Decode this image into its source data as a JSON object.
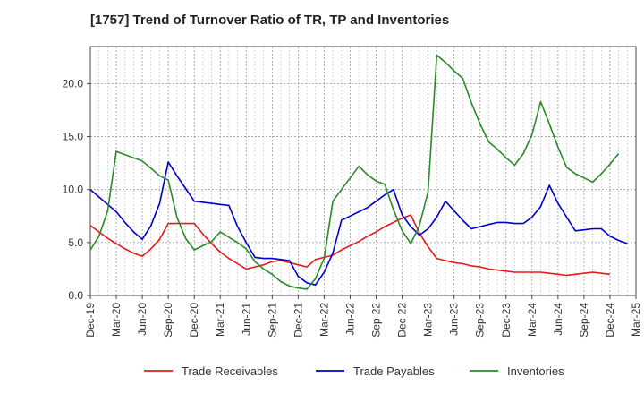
{
  "chart_data": {
    "type": "line",
    "title": "[1757]  Trend of Turnover Ratio of TR, TP and Inventories",
    "xlabel": "",
    "ylabel": "",
    "ylim": [
      0,
      23.5
    ],
    "grid": true,
    "legend_position": "bottom",
    "y_ticks": [
      0,
      5,
      10,
      15,
      20
    ],
    "y_tick_labels": [
      "0.0",
      "5.0",
      "10.0",
      "15.0",
      "20.0"
    ],
    "x_tick_labels": [
      "Dec-19",
      "Mar-20",
      "Jun-20",
      "Sep-20",
      "Dec-20",
      "Mar-21",
      "Jun-21",
      "Sep-21",
      "Dec-21",
      "Mar-22",
      "Jun-22",
      "Sep-22",
      "Dec-22",
      "Mar-23",
      "Jun-23",
      "Sep-23",
      "Dec-23",
      "Mar-24",
      "Jun-24",
      "Sep-24",
      "Dec-24",
      "Mar-25"
    ],
    "x_month_range": [
      0,
      63
    ],
    "series": [
      {
        "name": "Trade Receivables",
        "color": "#e31a1c",
        "points": [
          [
            0,
            6.6
          ],
          [
            1,
            6.0
          ],
          [
            2,
            5.4
          ],
          [
            3,
            4.9
          ],
          [
            4,
            4.4
          ],
          [
            5,
            4.0
          ],
          [
            6,
            3.7
          ],
          [
            7,
            4.4
          ],
          [
            8,
            5.3
          ],
          [
            9,
            6.8
          ],
          [
            10,
            6.8
          ],
          [
            11,
            6.8
          ],
          [
            12,
            6.8
          ],
          [
            13,
            5.8
          ],
          [
            14,
            4.9
          ],
          [
            15,
            4.1
          ],
          [
            16,
            3.5
          ],
          [
            17,
            3.0
          ],
          [
            18,
            2.5
          ],
          [
            19,
            2.7
          ],
          [
            20,
            2.9
          ],
          [
            21,
            3.2
          ],
          [
            22,
            3.3
          ],
          [
            23,
            3.1
          ],
          [
            24,
            2.9
          ],
          [
            25,
            2.7
          ],
          [
            26,
            3.4
          ],
          [
            27,
            3.6
          ],
          [
            28,
            3.8
          ],
          [
            29,
            4.3
          ],
          [
            30,
            4.7
          ],
          [
            31,
            5.1
          ],
          [
            32,
            5.6
          ],
          [
            33,
            6.0
          ],
          [
            34,
            6.5
          ],
          [
            35,
            6.9
          ],
          [
            36,
            7.3
          ],
          [
            37,
            7.6
          ],
          [
            38,
            5.9
          ],
          [
            39,
            4.6
          ],
          [
            40,
            3.5
          ],
          [
            41,
            3.3
          ],
          [
            42,
            3.1
          ],
          [
            43,
            3.0
          ],
          [
            44,
            2.8
          ],
          [
            45,
            2.7
          ],
          [
            46,
            2.5
          ],
          [
            47,
            2.4
          ],
          [
            48,
            2.3
          ],
          [
            49,
            2.2
          ],
          [
            50,
            2.2
          ],
          [
            51,
            2.2
          ],
          [
            52,
            2.2
          ],
          [
            53,
            2.1
          ],
          [
            54,
            2.0
          ],
          [
            55,
            1.9
          ],
          [
            56,
            2.0
          ],
          [
            57,
            2.1
          ],
          [
            58,
            2.2
          ],
          [
            59,
            2.1
          ],
          [
            60,
            2.0
          ]
        ]
      },
      {
        "name": "Trade Payables",
        "color": "#0000cc",
        "points": [
          [
            0,
            10.0
          ],
          [
            1,
            9.3
          ],
          [
            2,
            8.6
          ],
          [
            3,
            7.9
          ],
          [
            4,
            6.9
          ],
          [
            5,
            6.0
          ],
          [
            6,
            5.3
          ],
          [
            7,
            6.6
          ],
          [
            8,
            8.7
          ],
          [
            9,
            12.6
          ],
          [
            10,
            11.3
          ],
          [
            11,
            10.1
          ],
          [
            12,
            8.9
          ],
          [
            13,
            8.8
          ],
          [
            14,
            8.7
          ],
          [
            15,
            8.6
          ],
          [
            16,
            8.5
          ],
          [
            17,
            6.5
          ],
          [
            18,
            5.0
          ],
          [
            19,
            3.6
          ],
          [
            20,
            3.5
          ],
          [
            21,
            3.5
          ],
          [
            22,
            3.4
          ],
          [
            23,
            3.3
          ],
          [
            24,
            1.8
          ],
          [
            25,
            1.2
          ],
          [
            26,
            1.0
          ],
          [
            27,
            2.2
          ],
          [
            28,
            4.0
          ],
          [
            29,
            7.1
          ],
          [
            30,
            7.5
          ],
          [
            31,
            7.9
          ],
          [
            32,
            8.3
          ],
          [
            33,
            8.9
          ],
          [
            34,
            9.5
          ],
          [
            35,
            10.0
          ],
          [
            36,
            7.6
          ],
          [
            37,
            6.5
          ],
          [
            38,
            5.7
          ],
          [
            39,
            6.3
          ],
          [
            40,
            7.4
          ],
          [
            41,
            8.9
          ],
          [
            42,
            8.0
          ],
          [
            43,
            7.1
          ],
          [
            44,
            6.3
          ],
          [
            45,
            6.5
          ],
          [
            46,
            6.7
          ],
          [
            47,
            6.9
          ],
          [
            48,
            6.9
          ],
          [
            49,
            6.8
          ],
          [
            50,
            6.8
          ],
          [
            51,
            7.4
          ],
          [
            52,
            8.4
          ],
          [
            53,
            10.4
          ],
          [
            54,
            8.7
          ],
          [
            55,
            7.4
          ],
          [
            56,
            6.1
          ],
          [
            57,
            6.2
          ],
          [
            58,
            6.3
          ],
          [
            59,
            6.3
          ],
          [
            60,
            5.6
          ],
          [
            61,
            5.2
          ],
          [
            62,
            4.9
          ]
        ]
      },
      {
        "name": "Inventories",
        "color": "#2a8a2a",
        "points": [
          [
            0,
            4.3
          ],
          [
            1,
            5.6
          ],
          [
            2,
            8.0
          ],
          [
            3,
            13.6
          ],
          [
            4,
            13.3
          ],
          [
            5,
            13.0
          ],
          [
            6,
            12.7
          ],
          [
            7,
            12.0
          ],
          [
            8,
            11.3
          ],
          [
            9,
            10.9
          ],
          [
            10,
            7.4
          ],
          [
            11,
            5.4
          ],
          [
            12,
            4.3
          ],
          [
            13,
            4.7
          ],
          [
            14,
            5.1
          ],
          [
            15,
            6.0
          ],
          [
            16,
            5.5
          ],
          [
            17,
            5.0
          ],
          [
            18,
            4.4
          ],
          [
            19,
            3.2
          ],
          [
            20,
            2.5
          ],
          [
            21,
            2.0
          ],
          [
            22,
            1.3
          ],
          [
            23,
            0.9
          ],
          [
            24,
            0.7
          ],
          [
            25,
            0.6
          ],
          [
            26,
            1.6
          ],
          [
            27,
            3.5
          ],
          [
            28,
            8.9
          ],
          [
            29,
            10.0
          ],
          [
            30,
            11.1
          ],
          [
            31,
            12.2
          ],
          [
            32,
            11.4
          ],
          [
            33,
            10.8
          ],
          [
            34,
            10.5
          ],
          [
            35,
            8.1
          ],
          [
            36,
            6.1
          ],
          [
            37,
            4.9
          ],
          [
            38,
            6.6
          ],
          [
            39,
            9.8
          ],
          [
            40,
            22.7
          ],
          [
            41,
            22.0
          ],
          [
            42,
            21.2
          ],
          [
            43,
            20.5
          ],
          [
            44,
            18.2
          ],
          [
            45,
            16.2
          ],
          [
            46,
            14.5
          ],
          [
            47,
            13.8
          ],
          [
            48,
            13.0
          ],
          [
            49,
            12.3
          ],
          [
            50,
            13.4
          ],
          [
            51,
            15.2
          ],
          [
            52,
            18.3
          ],
          [
            53,
            16.2
          ],
          [
            54,
            14.0
          ],
          [
            55,
            12.1
          ],
          [
            56,
            11.5
          ],
          [
            57,
            11.1
          ],
          [
            58,
            10.7
          ],
          [
            59,
            11.5
          ],
          [
            60,
            12.4
          ],
          [
            61,
            13.4
          ]
        ]
      }
    ]
  }
}
